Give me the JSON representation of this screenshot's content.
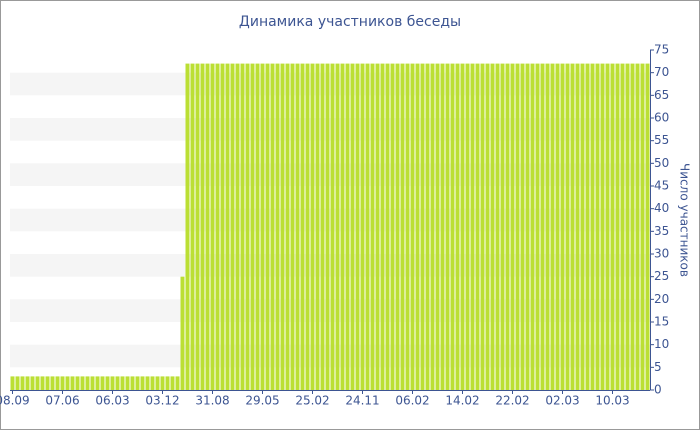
{
  "chart_data": {
    "type": "bar",
    "title": "Динамика участников беседы",
    "y_label": "Число участников",
    "categories": [
      "08.09",
      null,
      null,
      null,
      null,
      null,
      null,
      null,
      null,
      null,
      "07.06",
      null,
      null,
      null,
      null,
      null,
      null,
      null,
      null,
      null,
      "06.03",
      null,
      null,
      null,
      null,
      null,
      null,
      null,
      null,
      null,
      "03.12",
      null,
      null,
      null,
      null,
      null,
      null,
      null,
      null,
      null,
      "31.08",
      null,
      null,
      null,
      null,
      null,
      null,
      null,
      null,
      null,
      "29.05",
      null,
      null,
      null,
      null,
      null,
      null,
      null,
      null,
      null,
      "25.02",
      null,
      null,
      null,
      null,
      null,
      null,
      null,
      null,
      null,
      "24.11",
      null,
      null,
      null,
      null,
      null,
      null,
      null,
      null,
      null,
      "06.02",
      null,
      null,
      null,
      null,
      null,
      null,
      null,
      null,
      null,
      "14.02",
      null,
      null,
      null,
      null,
      null,
      null,
      null,
      null,
      null,
      "22.02",
      null,
      null,
      null,
      null,
      null,
      null,
      null,
      null,
      null,
      "02.03",
      null,
      null,
      null,
      null,
      null,
      null,
      null,
      null,
      null,
      "10.03",
      null,
      null,
      null,
      null,
      null,
      null,
      null
    ],
    "values": [
      3,
      3,
      3,
      3,
      3,
      3,
      3,
      3,
      3,
      3,
      3,
      3,
      3,
      3,
      3,
      3,
      3,
      3,
      3,
      3,
      3,
      3,
      3,
      3,
      3,
      3,
      3,
      3,
      3,
      3,
      3,
      3,
      3,
      3,
      25,
      72,
      72,
      72,
      72,
      72,
      72,
      72,
      72,
      72,
      72,
      72,
      72,
      72,
      72,
      72,
      72,
      72,
      72,
      72,
      72,
      72,
      72,
      72,
      72,
      72,
      72,
      72,
      72,
      72,
      72,
      72,
      72,
      72,
      72,
      72,
      72,
      72,
      72,
      72,
      72,
      72,
      72,
      72,
      72,
      72,
      72,
      72,
      72,
      72,
      72,
      72,
      72,
      72,
      72,
      72,
      72,
      72,
      72,
      72,
      72,
      72,
      72,
      72,
      72,
      72,
      72,
      72,
      72,
      72,
      72,
      72,
      72,
      72,
      72,
      72,
      72,
      72,
      72,
      72,
      72,
      72,
      72,
      72,
      72,
      72,
      72,
      72,
      72,
      72,
      72,
      72,
      72,
      72
    ],
    "color": "#bbdf34",
    "ylim": [
      0,
      75
    ],
    "yticks": [
      0,
      5,
      10,
      15,
      20,
      25,
      30,
      35,
      40,
      45,
      50,
      55,
      60,
      65,
      70,
      75
    ],
    "grid": true
  }
}
